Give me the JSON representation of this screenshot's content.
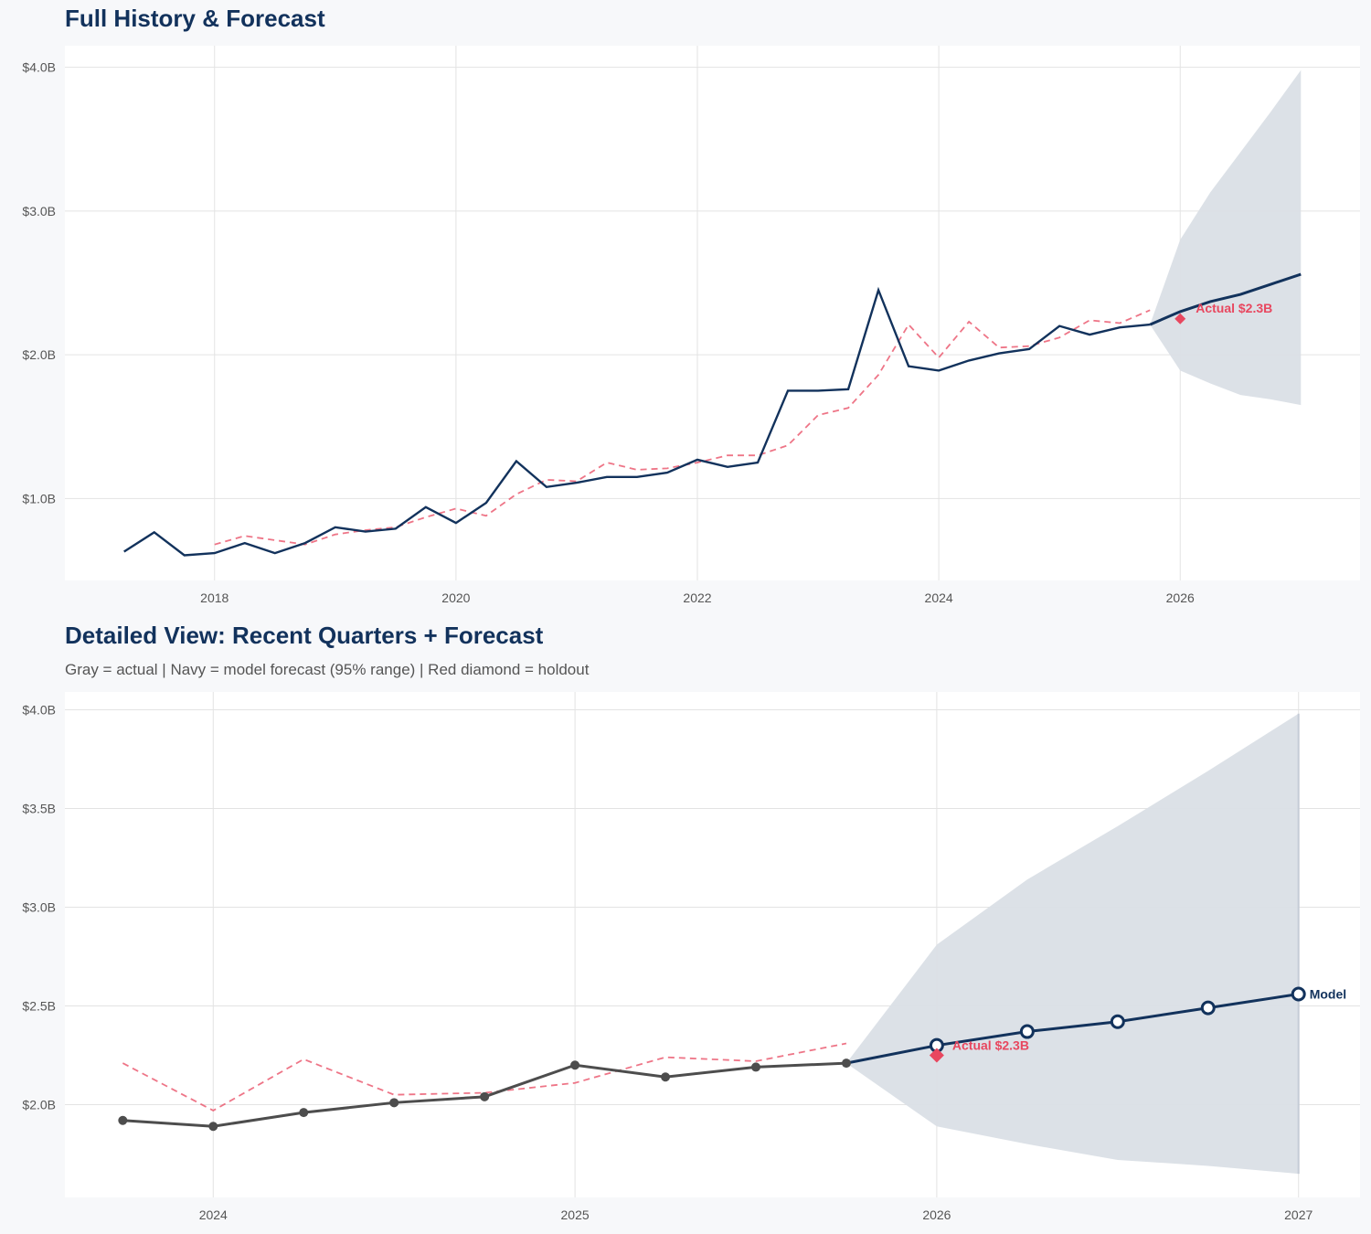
{
  "colors": {
    "navy": "#12325c",
    "gray": "#4d4d4d",
    "red": "#e8475f",
    "band": "#dadfe6",
    "grid": "#e3e3e3"
  },
  "chart_data": [
    {
      "type": "line",
      "title": "Full History & Forecast",
      "xlim": [
        2016.76,
        2027.49
      ],
      "ylim": [
        0.43,
        4.15
      ],
      "x_ticks": [
        2018,
        2020,
        2022,
        2024,
        2026
      ],
      "x_tick_labels": [
        "2018",
        "2020",
        "2022",
        "2024",
        "2026"
      ],
      "y_ticks": [
        1.0,
        2.0,
        3.0,
        4.0
      ],
      "y_tick_labels": [
        "$1.0B",
        "$2.0B",
        "$3.0B",
        "$4.0B"
      ],
      "grid": true,
      "actual": {
        "x": [
          2017.25,
          2017.5,
          2017.75,
          2018,
          2018.25,
          2018.5,
          2018.75,
          2019,
          2019.25,
          2019.5,
          2019.75,
          2020,
          2020.25,
          2020.5,
          2020.75,
          2021,
          2021.25,
          2021.5,
          2021.75,
          2022,
          2022.25,
          2022.5,
          2022.75,
          2023,
          2023.25,
          2023.5,
          2023.75,
          2024,
          2024.25,
          2024.5,
          2024.75,
          2025,
          2025.25,
          2025.5,
          2025.75
        ],
        "y": [
          0.63,
          0.765,
          0.605,
          0.62,
          0.69,
          0.62,
          0.69,
          0.8,
          0.77,
          0.79,
          0.94,
          0.83,
          0.97,
          1.26,
          1.08,
          1.11,
          1.15,
          1.15,
          1.18,
          1.27,
          1.22,
          1.25,
          1.75,
          1.75,
          1.76,
          2.45,
          1.92,
          1.89,
          1.96,
          2.01,
          2.04,
          2.2,
          2.14,
          2.19,
          2.21
        ]
      },
      "fitted": {
        "x": [
          2018,
          2018.25,
          2018.5,
          2018.75,
          2019,
          2019.25,
          2019.5,
          2019.75,
          2020,
          2020.25,
          2020.5,
          2020.75,
          2021,
          2021.25,
          2021.5,
          2021.75,
          2022,
          2022.25,
          2022.5,
          2022.75,
          2023,
          2023.25,
          2023.5,
          2023.75,
          2024,
          2024.25,
          2024.5,
          2024.75,
          2025,
          2025.25,
          2025.5,
          2025.75
        ],
        "y": [
          0.68,
          0.74,
          0.71,
          0.68,
          0.75,
          0.78,
          0.8,
          0.87,
          0.93,
          0.88,
          1.03,
          1.13,
          1.12,
          1.25,
          1.2,
          1.21,
          1.25,
          1.3,
          1.3,
          1.37,
          1.58,
          1.63,
          1.86,
          2.21,
          1.98,
          2.23,
          2.05,
          2.06,
          2.12,
          2.24,
          2.22,
          2.31
        ]
      },
      "forecast": {
        "x": [
          2025.75,
          2026,
          2026.25,
          2026.5,
          2026.75,
          2027
        ],
        "y": [
          2.21,
          2.3,
          2.37,
          2.42,
          2.49,
          2.56
        ]
      },
      "band": {
        "x": [
          2025.75,
          2026,
          2026.25,
          2026.5,
          2026.75,
          2027
        ],
        "upper": [
          2.21,
          2.8,
          3.13,
          3.41,
          3.69,
          3.98
        ],
        "lower": [
          2.21,
          1.89,
          1.8,
          1.72,
          1.69,
          1.65
        ]
      },
      "holdout": {
        "x": 2026,
        "y": 2.25,
        "label": "Actual $2.3B"
      }
    },
    {
      "type": "line",
      "title": "Detailed View: Recent Quarters + Forecast",
      "subtitle": "Gray = actual  |  Navy = model forecast (95% range)  |  Red diamond = holdout",
      "xlim": [
        2023.59,
        2027.17
      ],
      "ylim": [
        1.53,
        4.09
      ],
      "x_ticks": [
        2024,
        2025,
        2026,
        2027
      ],
      "x_tick_labels": [
        "2024",
        "2025",
        "2026",
        "2027"
      ],
      "y_ticks": [
        2.0,
        2.5,
        3.0,
        3.5,
        4.0
      ],
      "y_tick_labels": [
        "$2.0B",
        "$2.5B",
        "$3.0B",
        "$3.5B",
        "$4.0B"
      ],
      "grid": true,
      "actual": {
        "x": [
          2023.75,
          2024,
          2024.25,
          2024.5,
          2024.75,
          2025,
          2025.25,
          2025.5,
          2025.75
        ],
        "y": [
          1.92,
          1.89,
          1.96,
          2.01,
          2.04,
          2.2,
          2.14,
          2.19,
          2.21
        ]
      },
      "fitted": {
        "x": [
          2023.75,
          2024,
          2024.25,
          2024.5,
          2024.75,
          2025,
          2025.25,
          2025.5,
          2025.75
        ],
        "y": [
          2.21,
          1.97,
          2.23,
          2.05,
          2.06,
          2.11,
          2.24,
          2.22,
          2.31
        ]
      },
      "forecast": {
        "x": [
          2025.75,
          2026,
          2026.25,
          2026.5,
          2026.75,
          2027
        ],
        "y": [
          2.21,
          2.3,
          2.37,
          2.42,
          2.49,
          2.56
        ],
        "label": "Model"
      },
      "band": {
        "x": [
          2025.75,
          2026,
          2026.25,
          2026.5,
          2026.75,
          2027
        ],
        "upper": [
          2.21,
          2.81,
          3.14,
          3.41,
          3.69,
          3.98
        ],
        "lower": [
          2.21,
          1.89,
          1.8,
          1.72,
          1.69,
          1.65
        ]
      },
      "holdout": {
        "x": 2026,
        "y": 2.25,
        "label": "Actual $2.3B"
      }
    }
  ]
}
